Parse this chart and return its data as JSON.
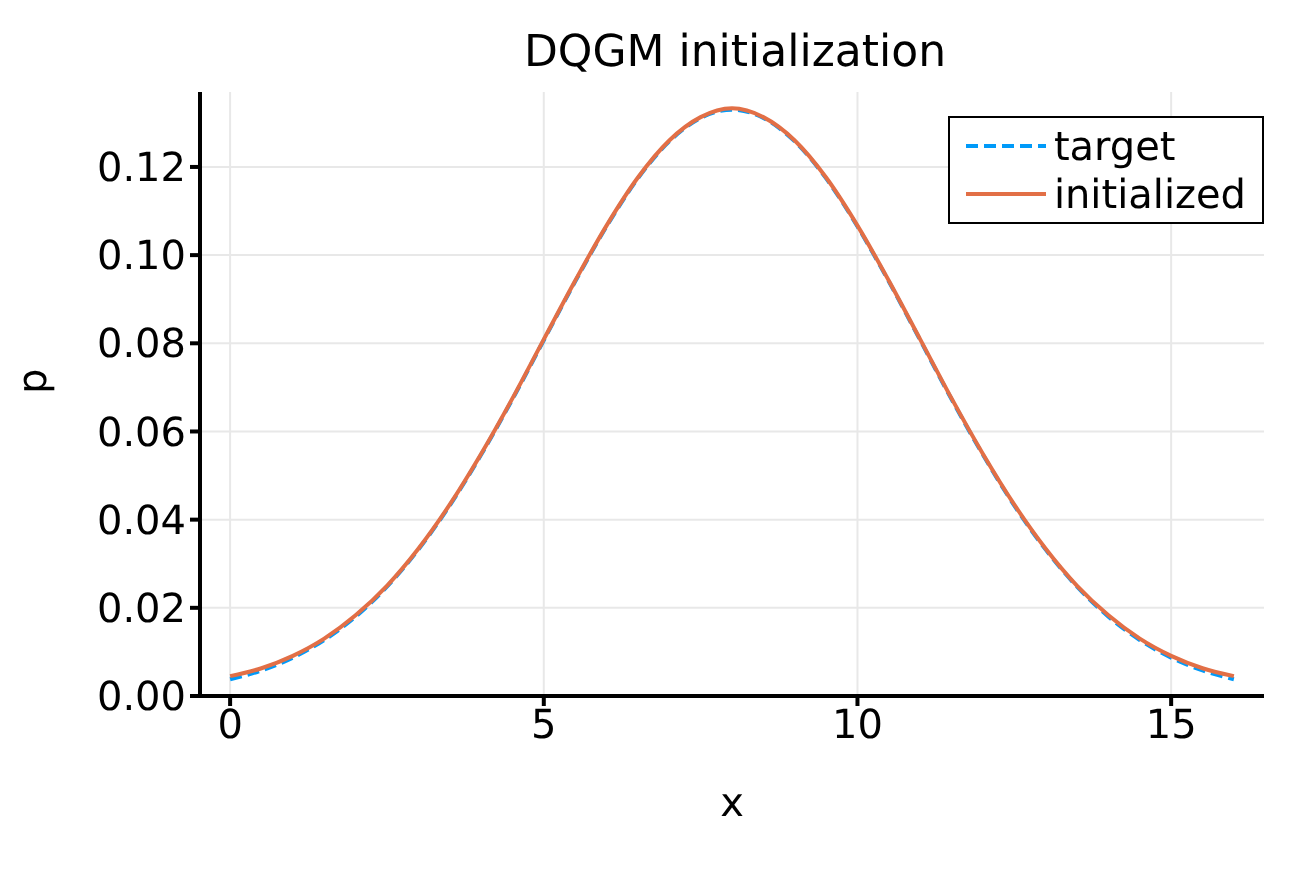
{
  "chart_data": {
    "type": "line",
    "title": "DQGM initialization",
    "xlabel": "x",
    "ylabel": "p",
    "x": [
      0,
      0.5,
      1,
      1.5,
      2,
      2.5,
      3,
      3.5,
      4,
      4.5,
      5,
      5.5,
      6,
      6.5,
      7,
      7.5,
      8,
      8.5,
      9,
      9.5,
      10,
      10.5,
      11,
      11.5,
      12,
      12.5,
      13,
      13.5,
      14,
      14.5,
      15,
      15.5,
      16
    ],
    "series": [
      {
        "name": "target",
        "color": "#009af9",
        "line_style": "dashed",
        "values": [
          0.0038,
          0.0058,
          0.0087,
          0.0127,
          0.018,
          0.0248,
          0.0332,
          0.0432,
          0.0547,
          0.0673,
          0.0807,
          0.094,
          0.1065,
          0.1174,
          0.1258,
          0.1311,
          0.133,
          0.1311,
          0.1258,
          0.1174,
          0.1065,
          0.094,
          0.0807,
          0.0673,
          0.0547,
          0.0432,
          0.0332,
          0.0248,
          0.018,
          0.0127,
          0.0087,
          0.0058,
          0.0038
        ]
      },
      {
        "name": "initialized",
        "color": "#e26f46",
        "line_style": "solid",
        "values": [
          0.0045,
          0.0063,
          0.0091,
          0.013,
          0.0183,
          0.025,
          0.0334,
          0.0434,
          0.0549,
          0.0675,
          0.0809,
          0.0942,
          0.1067,
          0.1176,
          0.126,
          0.1313,
          0.1333,
          0.1313,
          0.126,
          0.1176,
          0.1067,
          0.0942,
          0.0809,
          0.0675,
          0.0549,
          0.0434,
          0.0334,
          0.025,
          0.0183,
          0.013,
          0.0091,
          0.0063,
          0.0045
        ]
      }
    ],
    "xlim": [
      -0.48,
      16.48
    ],
    "xticks": [
      0,
      5,
      10,
      15
    ],
    "ylim": [
      0,
      0.137
    ],
    "yticks": [
      {
        "value": 0,
        "label": "0.00"
      },
      {
        "value": 0.02,
        "label": "0.02"
      },
      {
        "value": 0.04,
        "label": "0.04"
      },
      {
        "value": 0.06,
        "label": "0.06"
      },
      {
        "value": 0.08,
        "label": "0.08"
      },
      {
        "value": 0.1,
        "label": "0.10"
      },
      {
        "value": 0.12,
        "label": "0.12"
      }
    ],
    "grid": true,
    "legend": "top right",
    "marker": "none"
  }
}
